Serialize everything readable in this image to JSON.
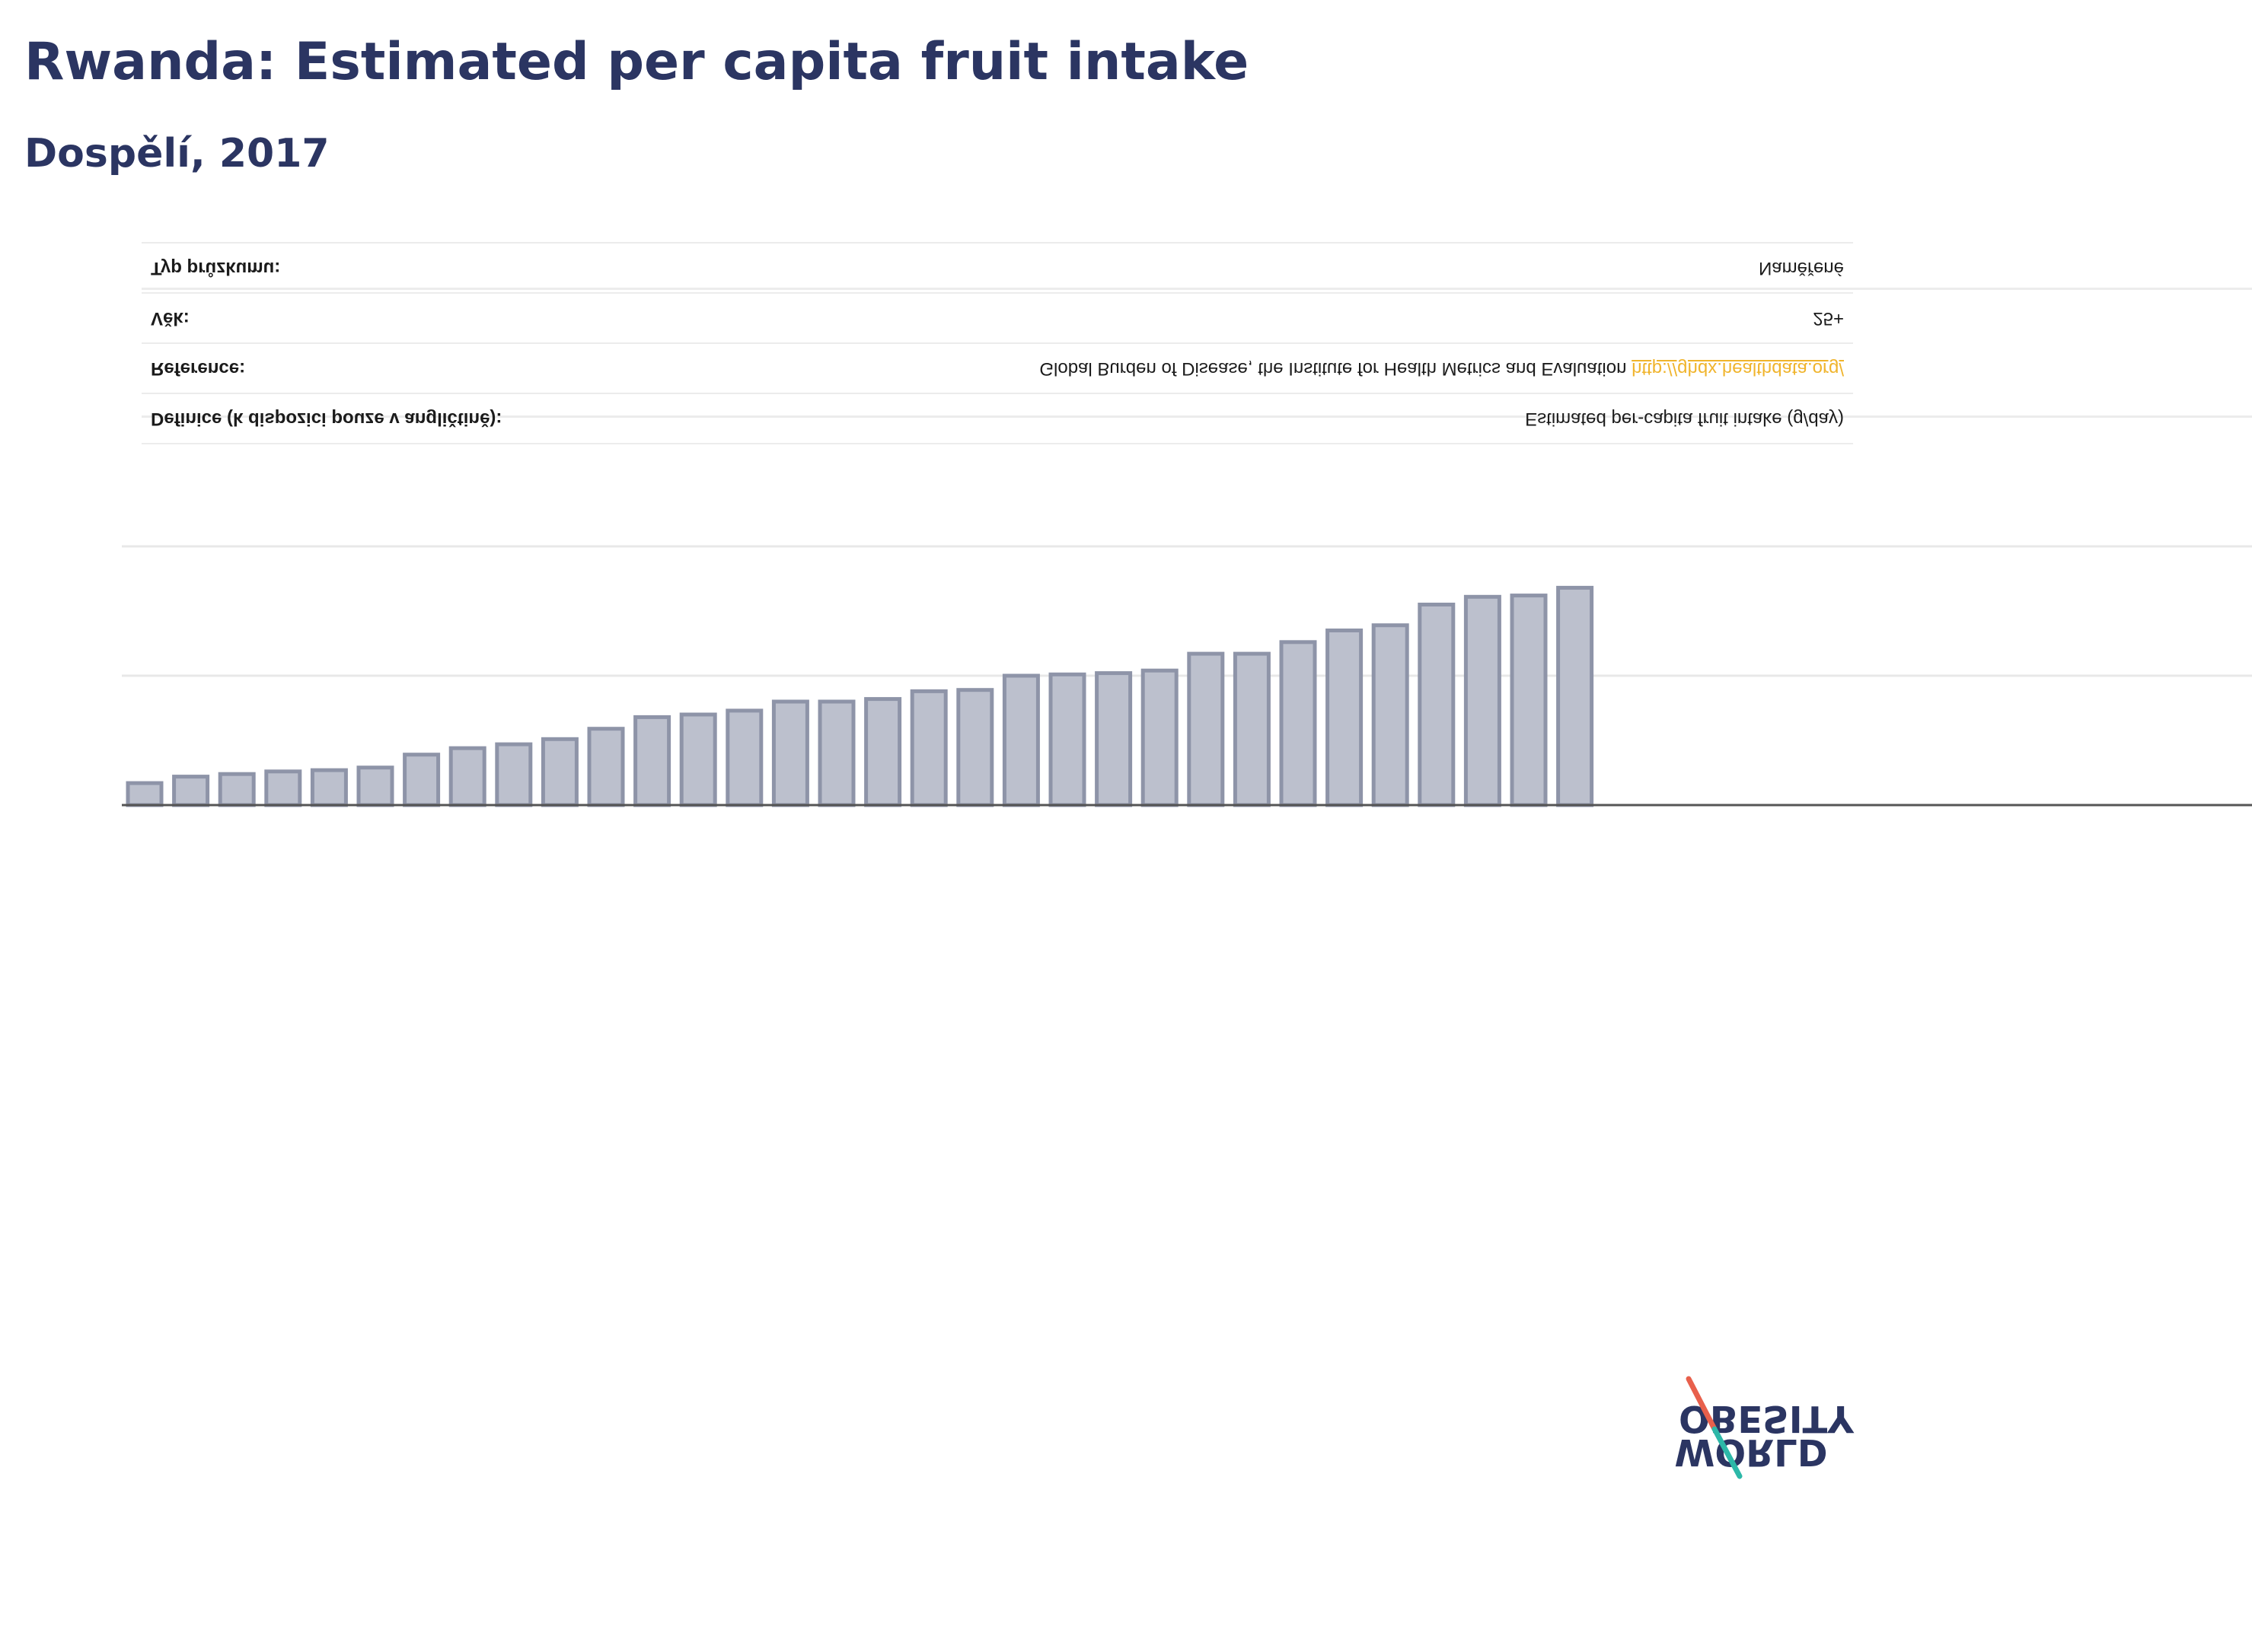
{
  "title": "Rwanda: Estimated per capita fruit intake",
  "subtitle": "Dospělí, 2017",
  "info_table": [
    {
      "key": "Definice (k dispozici pouze v angličtině):",
      "value": "Estimated per-capita fruit intake (g/day)"
    },
    {
      "key": "Reference:",
      "value": "Global Burden of Disease, the Institute for Health Metrics and Evaluation",
      "link": "http://ghdx.healthdata.org/"
    },
    {
      "key": "Věk:",
      "value": "25+"
    },
    {
      "key": "Typ průzkumu:",
      "value": "Naměřené"
    }
  ],
  "logo": {
    "line1": "OBESITY",
    "line2": "WORLD"
  },
  "colors": {
    "title": "#2b3562",
    "bar_fill": "#bcc0cd",
    "bar_stroke": "#8e94a8",
    "link": "#f0b42c",
    "axis": "#555555",
    "grid": "#e8e8e8",
    "logo_red": "#e8604c",
    "logo_teal": "#2db8a8"
  },
  "chart_data": {
    "type": "bar",
    "values": [
      17,
      22,
      24,
      26,
      27,
      29,
      39,
      44,
      47,
      51,
      59,
      68,
      70,
      73,
      80,
      80,
      82,
      88,
      89,
      100,
      101,
      102,
      104,
      117,
      117,
      126,
      135,
      139,
      155,
      161,
      162,
      168
    ],
    "ylim": [
      0,
      200
    ],
    "grid": true,
    "title": "",
    "xlabel": "",
    "ylabel": ""
  }
}
